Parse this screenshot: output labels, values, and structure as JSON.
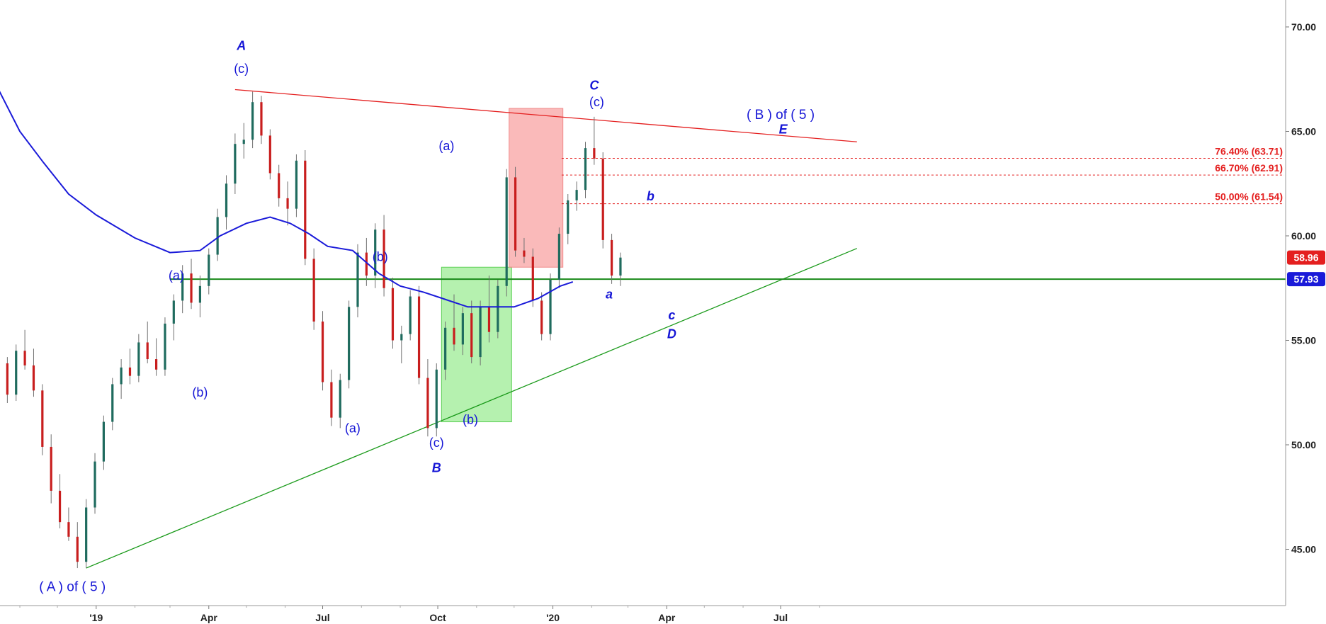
{
  "chart_data": {
    "type": "candlestick",
    "y_axis": {
      "range": [
        42.5,
        71.0
      ],
      "ticks": [
        "45.00",
        "50.00",
        "55.00",
        "60.00",
        "65.00",
        "70.00"
      ],
      "side": "right"
    },
    "x_axis": {
      "ticks": [
        "'19",
        "Apr",
        "Jul",
        "Oct",
        "'20",
        "Apr",
        "Jul"
      ]
    },
    "price_tags": [
      {
        "id": "last",
        "value": 58.96,
        "text": "58.96",
        "color": "#e41f1f"
      },
      {
        "id": "level",
        "value": 57.93,
        "text": "57.93",
        "color": "#1a1ad9"
      }
    ],
    "fib_levels": [
      {
        "value": 63.71,
        "label": "76.40% (63.71)"
      },
      {
        "value": 62.91,
        "label": "66.70% (62.91)"
      },
      {
        "value": 61.54,
        "label": "50.00% (61.54)"
      }
    ],
    "horizontal_line": {
      "value": 57.93,
      "color": "#1a8a1a"
    },
    "upper_trendline": {
      "from": [
        "2019-04-22",
        67.0
      ],
      "to": [
        "2020-08-31",
        64.5
      ],
      "color": "#e41f1f"
    },
    "lower_trendline": {
      "from": [
        "2018-12-24",
        44.1
      ],
      "to": [
        "2020-08-31",
        59.4
      ],
      "color": "#1a9a1a"
    },
    "zones": [
      {
        "color": "green",
        "x_from": "2019-10-04",
        "x_to": "2019-11-29",
        "y_from": 51.1,
        "y_to": 58.5
      },
      {
        "color": "red",
        "x_from": "2019-11-27",
        "x_to": "2020-01-09",
        "y_from": 58.5,
        "y_to": 66.1
      }
    ],
    "moving_average": [
      [
        "2018-10-15",
        67.0
      ],
      [
        "2018-11-01",
        65.0
      ],
      [
        "2018-11-20",
        63.5
      ],
      [
        "2018-12-10",
        62.0
      ],
      [
        "2019-01-01",
        61.0
      ],
      [
        "2019-02-01",
        59.9
      ],
      [
        "2019-03-01",
        59.2
      ],
      [
        "2019-03-25",
        59.3
      ],
      [
        "2019-04-10",
        60.0
      ],
      [
        "2019-05-01",
        60.6
      ],
      [
        "2019-05-20",
        60.9
      ],
      [
        "2019-06-05",
        60.6
      ],
      [
        "2019-06-20",
        60.1
      ],
      [
        "2019-07-05",
        59.5
      ],
      [
        "2019-07-25",
        59.3
      ],
      [
        "2019-08-15",
        58.2
      ],
      [
        "2019-09-01",
        57.6
      ],
      [
        "2019-09-20",
        57.3
      ],
      [
        "2019-10-05",
        57.0
      ],
      [
        "2019-10-25",
        56.6
      ],
      [
        "2019-11-15",
        56.6
      ],
      [
        "2019-12-01",
        56.6
      ],
      [
        "2019-12-20",
        57.0
      ],
      [
        "2020-01-07",
        57.6
      ],
      [
        "2020-01-17",
        57.8
      ]
    ],
    "candles": [
      [
        "2018-10-15",
        55.0,
        55.3,
        53.5,
        53.9
      ],
      [
        "2018-10-22",
        53.9,
        54.2,
        52.0,
        52.4
      ],
      [
        "2018-10-29",
        52.4,
        54.8,
        52.1,
        54.5
      ],
      [
        "2018-11-05",
        54.5,
        55.5,
        53.6,
        53.8
      ],
      [
        "2018-11-12",
        53.8,
        54.6,
        52.3,
        52.6
      ],
      [
        "2018-11-19",
        52.6,
        52.9,
        49.5,
        49.9
      ],
      [
        "2018-11-26",
        49.9,
        50.5,
        47.2,
        47.8
      ],
      [
        "2018-12-03",
        47.8,
        48.6,
        46.0,
        46.3
      ],
      [
        "2018-12-10",
        46.3,
        47.0,
        45.4,
        45.6
      ],
      [
        "2018-12-17",
        45.6,
        46.3,
        44.1,
        44.4
      ],
      [
        "2018-12-24",
        44.4,
        47.4,
        44.1,
        47.0
      ],
      [
        "2018-12-31",
        47.0,
        49.6,
        46.7,
        49.2
      ],
      [
        "2019-01-07",
        49.2,
        51.4,
        48.8,
        51.1
      ],
      [
        "2019-01-14",
        51.1,
        53.2,
        50.7,
        52.9
      ],
      [
        "2019-01-21",
        52.9,
        54.1,
        52.2,
        53.7
      ],
      [
        "2019-01-28",
        53.7,
        54.6,
        52.9,
        53.3
      ],
      [
        "2019-02-04",
        53.3,
        55.3,
        53.0,
        54.9
      ],
      [
        "2019-02-11",
        54.9,
        55.9,
        53.9,
        54.1
      ],
      [
        "2019-02-18",
        54.1,
        55.1,
        53.3,
        53.6
      ],
      [
        "2019-02-25",
        53.6,
        56.1,
        53.3,
        55.8
      ],
      [
        "2019-03-04",
        55.8,
        57.2,
        55.0,
        56.9
      ],
      [
        "2019-03-11",
        56.9,
        58.6,
        56.3,
        58.2
      ],
      [
        "2019-03-18",
        58.2,
        58.9,
        56.5,
        56.8
      ],
      [
        "2019-03-25",
        56.8,
        58.1,
        56.1,
        57.6
      ],
      [
        "2019-04-01",
        57.6,
        59.4,
        57.2,
        59.1
      ],
      [
        "2019-04-08",
        59.1,
        61.3,
        58.8,
        60.9
      ],
      [
        "2019-04-15",
        60.9,
        62.9,
        60.3,
        62.5
      ],
      [
        "2019-04-22",
        62.5,
        64.9,
        62.0,
        64.4
      ],
      [
        "2019-04-29",
        64.4,
        65.4,
        63.7,
        64.6
      ],
      [
        "2019-05-06",
        64.6,
        66.9,
        64.2,
        66.4
      ],
      [
        "2019-05-13",
        66.4,
        66.7,
        64.4,
        64.8
      ],
      [
        "2019-05-20",
        64.8,
        65.1,
        62.7,
        63.0
      ],
      [
        "2019-05-27",
        63.0,
        63.4,
        61.4,
        61.8
      ],
      [
        "2019-06-03",
        61.8,
        62.6,
        60.5,
        61.3
      ],
      [
        "2019-06-10",
        61.3,
        63.9,
        60.9,
        63.6
      ],
      [
        "2019-06-17",
        63.6,
        64.1,
        58.6,
        58.9
      ],
      [
        "2019-06-24",
        58.9,
        59.4,
        55.5,
        55.9
      ],
      [
        "2019-07-01",
        55.9,
        56.4,
        52.6,
        53.0
      ],
      [
        "2019-07-08",
        53.0,
        53.6,
        50.9,
        51.3
      ],
      [
        "2019-07-15",
        51.3,
        53.4,
        50.8,
        53.1
      ],
      [
        "2019-07-22",
        53.1,
        56.9,
        52.7,
        56.6
      ],
      [
        "2019-07-29",
        56.6,
        59.6,
        56.1,
        59.2
      ],
      [
        "2019-08-05",
        59.2,
        59.9,
        57.6,
        58.1
      ],
      [
        "2019-08-12",
        58.1,
        60.6,
        57.5,
        60.3
      ],
      [
        "2019-08-19",
        60.3,
        61.0,
        57.1,
        57.5
      ],
      [
        "2019-08-26",
        57.5,
        58.0,
        54.6,
        55.0
      ],
      [
        "2019-09-02",
        55.0,
        55.7,
        53.9,
        55.3
      ],
      [
        "2019-09-09",
        55.3,
        57.4,
        55.0,
        57.1
      ],
      [
        "2019-09-16",
        57.1,
        57.6,
        52.9,
        53.2
      ],
      [
        "2019-09-23",
        53.2,
        54.1,
        50.4,
        50.8
      ],
      [
        "2019-09-30",
        50.8,
        53.9,
        50.4,
        53.6
      ],
      [
        "2019-10-07",
        53.6,
        55.9,
        53.1,
        55.6
      ],
      [
        "2019-10-14",
        55.6,
        57.2,
        54.5,
        54.8
      ],
      [
        "2019-10-21",
        54.8,
        56.6,
        54.3,
        56.3
      ],
      [
        "2019-10-28",
        56.3,
        56.9,
        53.9,
        54.2
      ],
      [
        "2019-11-04",
        54.2,
        56.9,
        53.8,
        56.6
      ],
      [
        "2019-11-11",
        56.6,
        58.1,
        54.9,
        55.4
      ],
      [
        "2019-11-18",
        55.4,
        57.9,
        55.1,
        57.6
      ],
      [
        "2019-11-25",
        57.6,
        63.2,
        57.1,
        62.8
      ],
      [
        "2019-12-02",
        62.8,
        63.3,
        59.0,
        59.3
      ],
      [
        "2019-12-09",
        59.3,
        59.9,
        58.7,
        59.0
      ],
      [
        "2019-12-16",
        59.0,
        59.4,
        56.6,
        56.9
      ],
      [
        "2019-12-23",
        56.9,
        57.3,
        55.0,
        55.3
      ],
      [
        "2019-12-30",
        55.3,
        58.2,
        55.0,
        57.9
      ],
      [
        "2020-01-06",
        57.9,
        60.4,
        57.5,
        60.1
      ],
      [
        "2020-01-13",
        60.1,
        62.0,
        59.6,
        61.7
      ],
      [
        "2020-01-20",
        61.7,
        62.6,
        61.2,
        62.2
      ],
      [
        "2020-01-27",
        62.2,
        64.5,
        61.8,
        64.2
      ],
      [
        "2020-02-03",
        64.2,
        65.7,
        63.4,
        63.7
      ],
      [
        "2020-02-10",
        63.7,
        64.0,
        59.4,
        59.8
      ],
      [
        "2020-02-17",
        59.8,
        60.1,
        57.7,
        58.1
      ],
      [
        "2020-02-24",
        58.1,
        59.2,
        57.6,
        58.96
      ]
    ],
    "annotations": [
      {
        "text": "( A ) of ( 5 )",
        "style": "normal"
      },
      {
        "text": "(a)",
        "style": "normal"
      },
      {
        "text": "(b)",
        "style": "normal"
      },
      {
        "text": "A",
        "style": "italic"
      },
      {
        "text": "(c)",
        "style": "normal"
      },
      {
        "text": "(a)",
        "style": "normal"
      },
      {
        "text": "(b)",
        "style": "normal"
      },
      {
        "text": "(c)",
        "style": "normal"
      },
      {
        "text": "B",
        "style": "italic"
      },
      {
        "text": "(a)",
        "style": "normal"
      },
      {
        "text": "(b)",
        "style": "normal"
      },
      {
        "text": "C",
        "style": "italic"
      },
      {
        "text": "(c)",
        "style": "normal"
      },
      {
        "text": "a",
        "style": "italic"
      },
      {
        "text": "b",
        "style": "italic"
      },
      {
        "text": "c",
        "style": "italic"
      },
      {
        "text": "D",
        "style": "italic"
      },
      {
        "text": "( B ) of ( 5 )",
        "style": "normal"
      },
      {
        "text": "E",
        "style": "italic"
      }
    ],
    "colors": {
      "up_candle": "#1f6b5e",
      "down_candle": "#c81e1e",
      "moving_average": "#1a1ad9",
      "wave_labels": "#1616d6",
      "fib_lines": "#e41f1f"
    }
  }
}
